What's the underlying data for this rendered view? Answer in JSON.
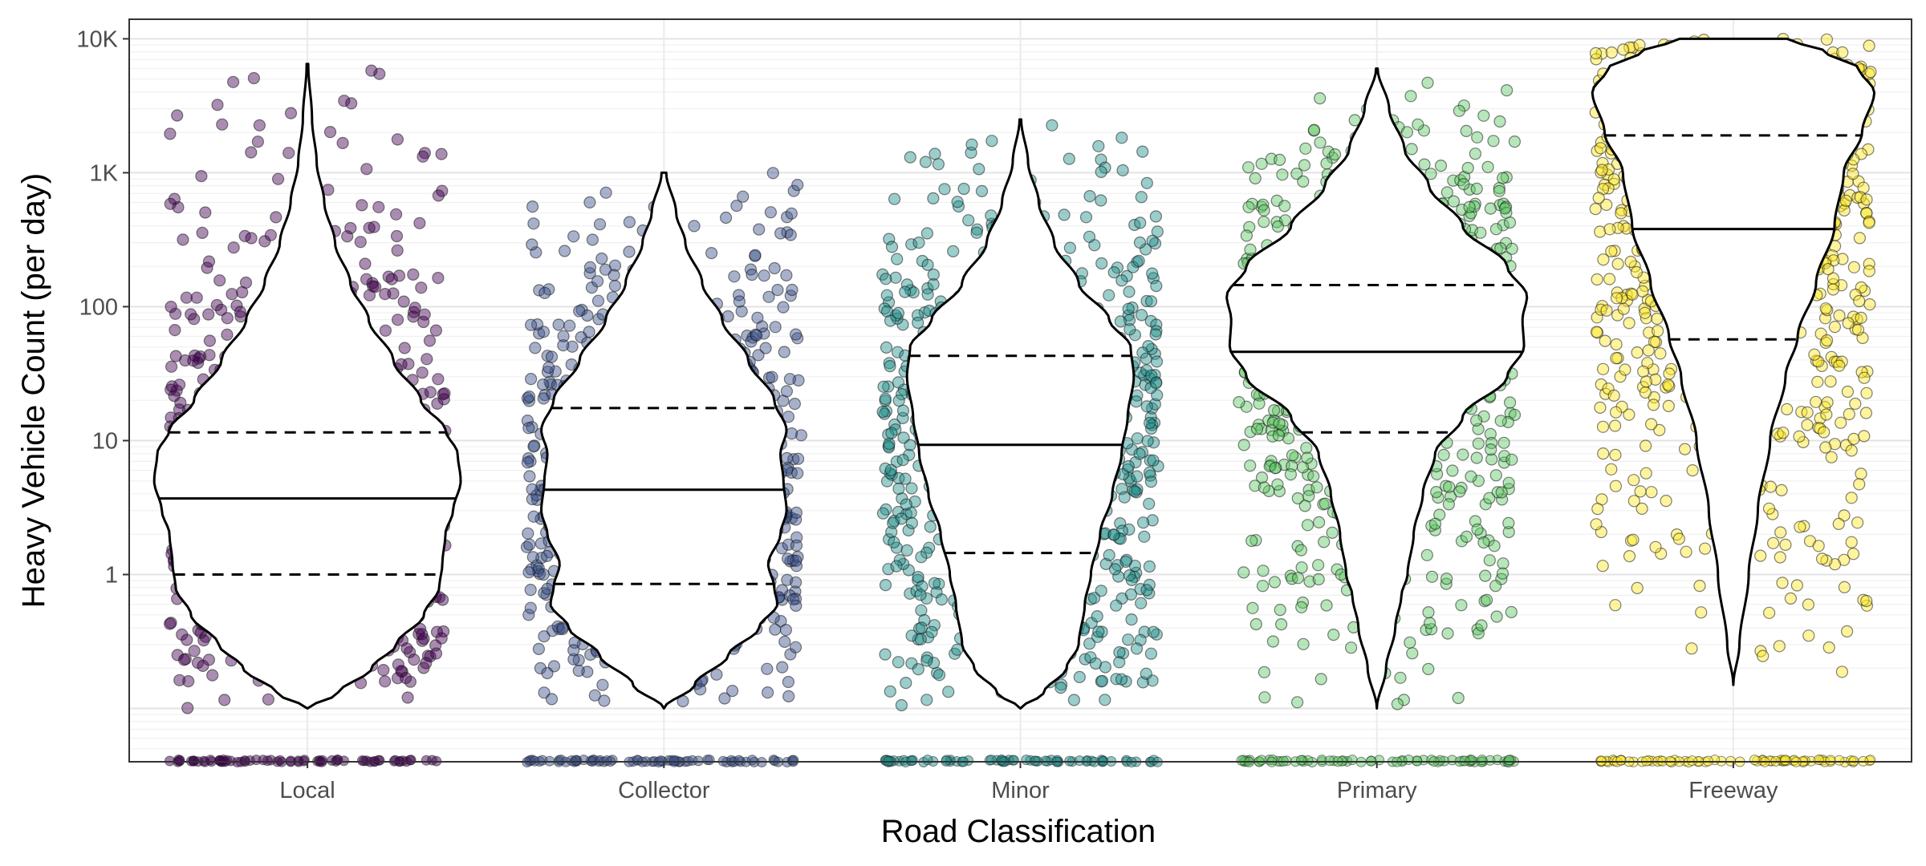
{
  "chart_data": {
    "type": "violin",
    "title": "",
    "xlabel": "Road Classification",
    "ylabel": "Heavy Vehicle Count (per day)",
    "y_scale": "log10",
    "ylim": [
      0.04,
      14000
    ],
    "y_ticks": [
      {
        "value": 1,
        "label": "1"
      },
      {
        "value": 10,
        "label": "10"
      },
      {
        "value": 100,
        "label": "100"
      },
      {
        "value": 1000,
        "label": "1K"
      },
      {
        "value": 10000,
        "label": "10K"
      }
    ],
    "grid": true,
    "legend": "none",
    "overlay": "jittered points per category (semi-transparent) with violin showing median (solid) and quartiles (dashed)",
    "categories": [
      "Local",
      "Collector",
      "Minor",
      "Primary",
      "Freeway"
    ],
    "series": [
      {
        "category": "Local",
        "color": "#440154",
        "median": 3.7,
        "q1": 1.0,
        "q3": 11.5,
        "min": 0.1,
        "max": 6500,
        "zero_floor_points": true,
        "profile": [
          [
            0.1,
            0.0
          ],
          [
            0.13,
            0.2
          ],
          [
            0.2,
            0.42
          ],
          [
            0.3,
            0.58
          ],
          [
            0.5,
            0.76
          ],
          [
            0.8,
            0.86
          ],
          [
            1.2,
            0.88
          ],
          [
            2,
            0.9
          ],
          [
            3,
            0.95
          ],
          [
            5,
            1.0
          ],
          [
            8,
            0.98
          ],
          [
            12,
            0.9
          ],
          [
            20,
            0.74
          ],
          [
            40,
            0.56
          ],
          [
            80,
            0.4
          ],
          [
            150,
            0.28
          ],
          [
            300,
            0.18
          ],
          [
            600,
            0.11
          ],
          [
            1200,
            0.06
          ],
          [
            2500,
            0.03
          ],
          [
            6500,
            0.005
          ]
        ]
      },
      {
        "category": "Collector",
        "color": "#3B528B",
        "median": 4.3,
        "q1": 0.85,
        "q3": 17.5,
        "min": 0.1,
        "max": 1000,
        "zero_floor_points": true,
        "profile": [
          [
            0.1,
            0.0
          ],
          [
            0.15,
            0.2
          ],
          [
            0.25,
            0.42
          ],
          [
            0.4,
            0.62
          ],
          [
            0.6,
            0.74
          ],
          [
            0.8,
            0.72
          ],
          [
            1.2,
            0.68
          ],
          [
            2,
            0.76
          ],
          [
            3,
            0.8
          ],
          [
            5,
            0.78
          ],
          [
            8,
            0.76
          ],
          [
            12,
            0.8
          ],
          [
            20,
            0.72
          ],
          [
            40,
            0.55
          ],
          [
            80,
            0.38
          ],
          [
            150,
            0.25
          ],
          [
            300,
            0.14
          ],
          [
            500,
            0.08
          ],
          [
            1000,
            0.015
          ]
        ]
      },
      {
        "category": "Minor",
        "color": "#21908C",
        "median": 9.3,
        "q1": 1.45,
        "q3": 43,
        "min": 0.1,
        "max": 2500,
        "zero_floor_points": true,
        "profile": [
          [
            0.1,
            0.0
          ],
          [
            0.13,
            0.15
          ],
          [
            0.2,
            0.3
          ],
          [
            0.3,
            0.38
          ],
          [
            0.6,
            0.42
          ],
          [
            1,
            0.46
          ],
          [
            2,
            0.52
          ],
          [
            4,
            0.6
          ],
          [
            8,
            0.66
          ],
          [
            15,
            0.7
          ],
          [
            30,
            0.74
          ],
          [
            50,
            0.72
          ],
          [
            80,
            0.58
          ],
          [
            150,
            0.38
          ],
          [
            300,
            0.22
          ],
          [
            600,
            0.12
          ],
          [
            1200,
            0.05
          ],
          [
            2500,
            0.005
          ]
        ]
      },
      {
        "category": "Primary",
        "color": "#5DC863",
        "median": 46,
        "q1": 11.5,
        "q3": 145,
        "min": 0.1,
        "max": 6000,
        "zero_floor_points": true,
        "profile": [
          [
            0.1,
            0.0
          ],
          [
            0.2,
            0.06
          ],
          [
            0.4,
            0.12
          ],
          [
            0.7,
            0.16
          ],
          [
            1,
            0.2
          ],
          [
            2,
            0.24
          ],
          [
            4,
            0.3
          ],
          [
            8,
            0.38
          ],
          [
            15,
            0.56
          ],
          [
            30,
            0.85
          ],
          [
            50,
            0.96
          ],
          [
            80,
            0.95
          ],
          [
            120,
            0.98
          ],
          [
            200,
            0.85
          ],
          [
            400,
            0.56
          ],
          [
            800,
            0.34
          ],
          [
            1500,
            0.18
          ],
          [
            3000,
            0.08
          ],
          [
            6000,
            0.005
          ]
        ]
      },
      {
        "category": "Freeway",
        "color": "#FDE725",
        "median": 380,
        "q1": 57,
        "q3": 1900,
        "min": 0.15,
        "max": 10000,
        "zero_floor_points": true,
        "profile": [
          [
            0.15,
            0.0
          ],
          [
            0.3,
            0.04
          ],
          [
            1,
            0.1
          ],
          [
            3,
            0.16
          ],
          [
            10,
            0.24
          ],
          [
            30,
            0.34
          ],
          [
            60,
            0.42
          ],
          [
            150,
            0.54
          ],
          [
            400,
            0.66
          ],
          [
            1000,
            0.72
          ],
          [
            2000,
            0.84
          ],
          [
            4000,
            0.92
          ],
          [
            6000,
            0.82
          ],
          [
            8000,
            0.6
          ],
          [
            10000,
            0.35
          ]
        ]
      }
    ]
  }
}
